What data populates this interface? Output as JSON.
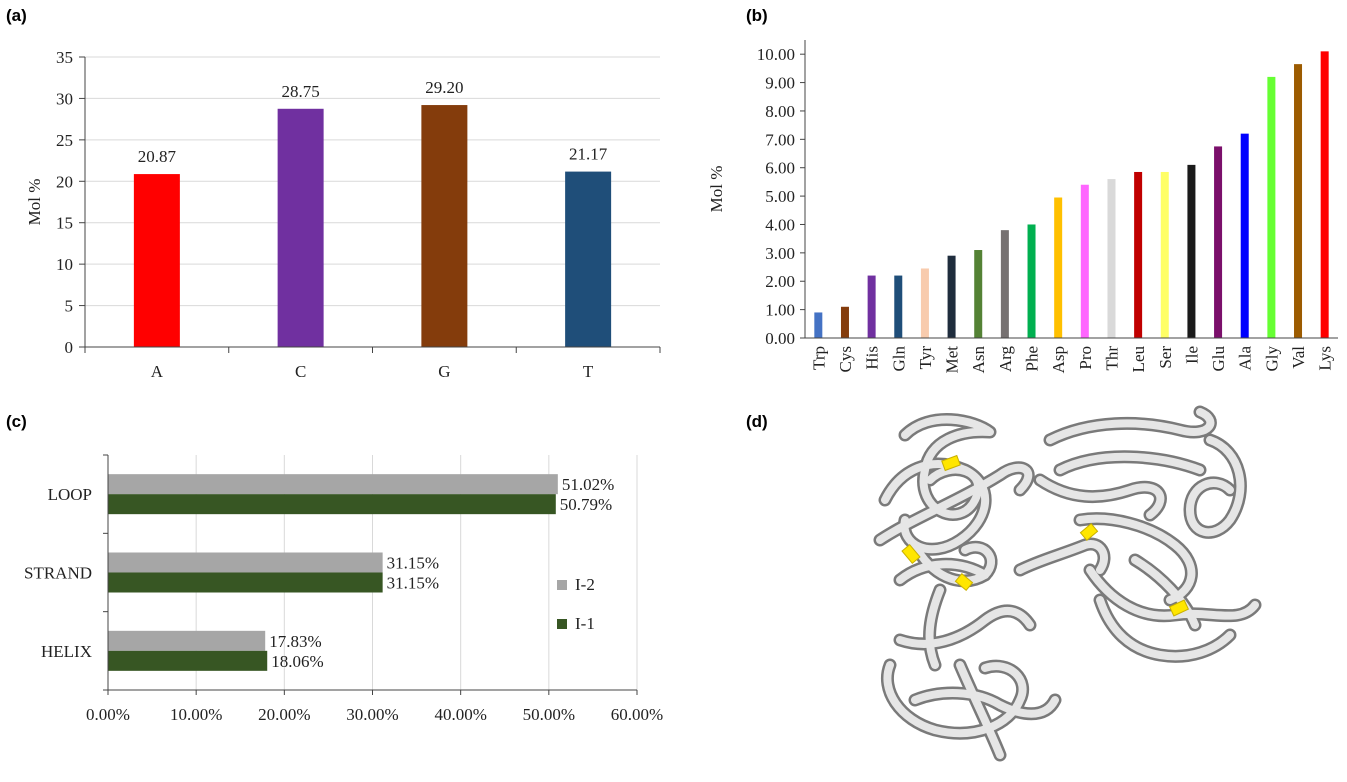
{
  "panels": {
    "a": {
      "label": "(a)"
    },
    "b": {
      "label": "(b)"
    },
    "c": {
      "label": "(c)"
    },
    "d": {
      "label": "(d)"
    }
  },
  "chart_data": [
    {
      "id": "a",
      "type": "bar",
      "categories": [
        "A",
        "C",
        "G",
        "T"
      ],
      "values": [
        20.87,
        28.75,
        29.2,
        21.17
      ],
      "data_labels": [
        "20.87",
        "28.75",
        "29.20",
        "21.17"
      ],
      "colors": [
        "#ff0000",
        "#7030a0",
        "#843c0c",
        "#1f4e79"
      ],
      "ylabel": "Mol %",
      "xlabel": "",
      "ylim": [
        0,
        35
      ],
      "yticks": [
        "0",
        "5",
        "10",
        "15",
        "20",
        "25",
        "30",
        "35"
      ],
      "grid": true
    },
    {
      "id": "b",
      "type": "bar",
      "categories": [
        "Trp",
        "Cys",
        "His",
        "Gln",
        "Tyr",
        "Met",
        "Asn",
        "Arg",
        "Phe",
        "Asp",
        "Pro",
        "Thr",
        "Leu",
        "Ser",
        "Ile",
        "Glu",
        "Ala",
        "Gly",
        "Val",
        "Lys"
      ],
      "values": [
        0.9,
        1.1,
        2.2,
        2.2,
        2.45,
        2.9,
        3.1,
        3.8,
        4.0,
        4.95,
        5.4,
        5.6,
        5.85,
        5.85,
        6.1,
        6.75,
        7.2,
        9.2,
        9.65,
        10.1
      ],
      "colors": [
        "#4472c4",
        "#843c0c",
        "#7030a0",
        "#1f4e79",
        "#f8cbad",
        "#1f2d3d",
        "#548235",
        "#767171",
        "#00b050",
        "#ffc000",
        "#ff66ff",
        "#d9d9d9",
        "#c00000",
        "#ffff66",
        "#1a1a1a",
        "#7b0f6b",
        "#0000ff",
        "#66ff33",
        "#9c5b00",
        "#ff0000"
      ],
      "ylabel": "Mol %",
      "xlabel": "",
      "ylim": [
        0,
        10.5
      ],
      "yticks": [
        "0.00",
        "1.00",
        "2.00",
        "3.00",
        "4.00",
        "5.00",
        "6.00",
        "7.00",
        "8.00",
        "9.00",
        "10.00"
      ],
      "grid": false
    },
    {
      "id": "c",
      "type": "bar",
      "orientation": "horizontal",
      "categories": [
        "LOOP",
        "STRAND",
        "HELIX"
      ],
      "series": [
        {
          "name": "I-2",
          "values": [
            51.02,
            31.15,
            17.83
          ],
          "labels": [
            "51.02%",
            "31.15%",
            "17.83%"
          ],
          "color": "#a6a6a6"
        },
        {
          "name": "I-1",
          "values": [
            50.79,
            31.15,
            18.06
          ],
          "labels": [
            "50.79%",
            "31.15%",
            "18.06%"
          ],
          "color": "#375623"
        }
      ],
      "xlim": [
        0,
        60
      ],
      "xticks": [
        "0.00%",
        "10.00%",
        "20.00%",
        "30.00%",
        "40.00%",
        "50.00%",
        "60.00%"
      ],
      "legend_position": "right",
      "grid": true
    }
  ],
  "image_d": {
    "description_icon": "protein-ribbon-structure",
    "ribbon_color": "#d4d4d4",
    "highlight_color": "#ffe600"
  }
}
